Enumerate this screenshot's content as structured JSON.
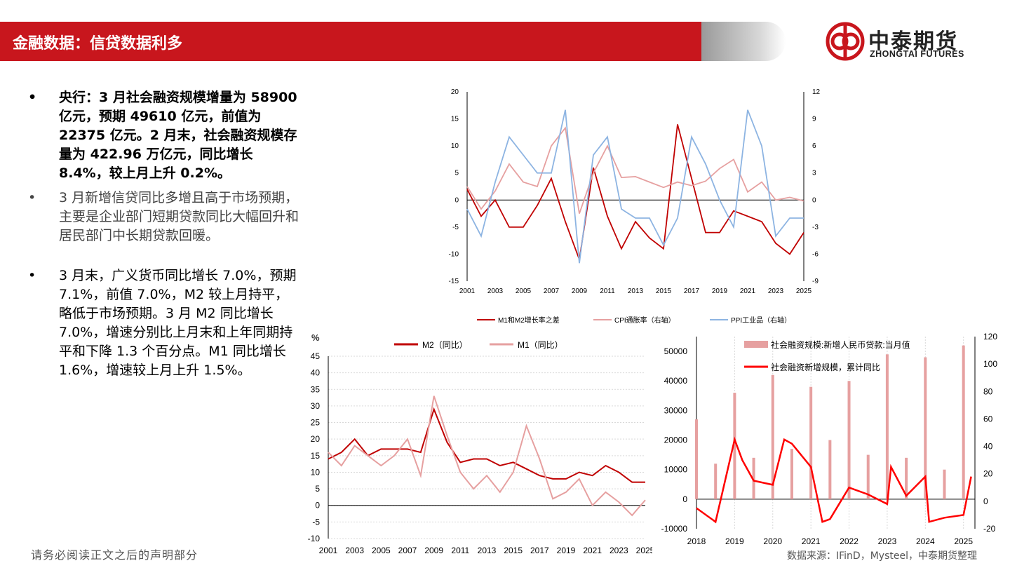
{
  "header": {
    "title": "金融数据：信贷数据利多"
  },
  "logo": {
    "cn": "中泰期货",
    "en": "ZHONGTAI FUTURES",
    "brand_color": "#c8161d"
  },
  "bullets": [
    {
      "text": "央行：3 月社会融资规模增量为 58900 亿元，预期 49610 亿元，前值为 22375 亿元。2 月末，社会融资规模存量为 422.96 万亿元，同比增长 8.4%，较上月上升 0.2%。"
    },
    {
      "text": "3 月新增信贷同比多增且高于市场预期，主要是企业部门短期贷款同比大幅回升和居民部门中长期贷款回暖。"
    },
    {
      "text": "3 月末，广义货币同比增长 7.0%，预期 7.1%，前值 7.0%，M2 较上月持平，略低于市场预期。3 月 M2 同比增长 7.0%，增速分别比上月末和上年同期持平和下降 1.3 个百分点。M1 同比增长 1.6%，增速较上月上升 1.5%。"
    }
  ],
  "footer": {
    "disclaimer": "请务必阅读正文之后的声明部分",
    "source": "数据来源：IFinD，Mysteel，中泰期货整理"
  },
  "chart_data": [
    {
      "type": "line",
      "left_ticks": [
        "20",
        "15",
        "10",
        "5",
        "0",
        "-5",
        "-10",
        "-15"
      ],
      "right_ticks": [
        "12",
        "9",
        "6",
        "3",
        "0",
        "-3",
        "-6",
        "-9"
      ],
      "x_ticks": [
        "2001",
        "2003",
        "2005",
        "2007",
        "2009",
        "2011",
        "2013",
        "2015",
        "2017",
        "2019",
        "2021",
        "2023",
        "2025"
      ],
      "ylim": [
        -15,
        20
      ],
      "ylim_right": [
        -9,
        12
      ],
      "legend_position": "bottom",
      "series": [
        {
          "name": "M1和M2增长率之差",
          "axis": "left",
          "color": "#c00000",
          "x": [
            2001,
            2002,
            2003,
            2004,
            2005,
            2006,
            2007,
            2008,
            2009,
            2010,
            2011,
            2012,
            2013,
            2014,
            2015,
            2016,
            2017,
            2018,
            2019,
            2020,
            2021,
            2022,
            2023,
            2024,
            2025
          ],
          "values": [
            2,
            -3,
            0,
            -5,
            -5,
            -1,
            4,
            -4,
            -11,
            6,
            -3,
            -9,
            -4,
            -7,
            -9,
            14,
            4,
            -6,
            -6,
            -2,
            -3,
            -4,
            -8,
            -10,
            -6
          ]
        },
        {
          "name": "CPI通胀率（右轴）",
          "axis": "right",
          "color": "#e6a0a0",
          "x": [
            2001,
            2002,
            2003,
            2004,
            2005,
            2006,
            2007,
            2008,
            2009,
            2010,
            2011,
            2012,
            2013,
            2014,
            2015,
            2016,
            2017,
            2018,
            2019,
            2020,
            2021,
            2022,
            2023,
            2024,
            2025
          ],
          "values": [
            1.5,
            -1,
            1,
            4,
            2,
            1.5,
            6,
            8,
            -1.5,
            3,
            6,
            2.5,
            2.6,
            2,
            1.4,
            2,
            1.6,
            2.1,
            3.5,
            4.5,
            0.9,
            2,
            0,
            0.3,
            -0.1
          ]
        },
        {
          "name": "PPI工业品（右轴）",
          "axis": "right",
          "color": "#8db4e2",
          "x": [
            2001,
            2002,
            2003,
            2004,
            2005,
            2006,
            2007,
            2008,
            2009,
            2010,
            2011,
            2012,
            2013,
            2014,
            2015,
            2016,
            2017,
            2018,
            2019,
            2020,
            2021,
            2022,
            2023,
            2024,
            2025
          ],
          "values": [
            -1,
            -4,
            2,
            7,
            5,
            3,
            3,
            10,
            -7,
            5,
            7,
            -1,
            -2,
            -2,
            -5,
            -2,
            7,
            4,
            0,
            -3,
            10,
            6,
            -4,
            -2,
            -2
          ]
        }
      ]
    },
    {
      "type": "line",
      "ylabel": "%",
      "y_ticks": [
        "45",
        "40",
        "35",
        "30",
        "25",
        "20",
        "15",
        "10",
        "5",
        "0",
        "-5",
        "-10"
      ],
      "x_ticks": [
        "2001",
        "2003",
        "2005",
        "2007",
        "2009",
        "2011",
        "2013",
        "2015",
        "2017",
        "2019",
        "2021",
        "2023",
        "2025"
      ],
      "ylim": [
        -10,
        45
      ],
      "legend_position": "top",
      "series": [
        {
          "name": "M2（同比）",
          "color": "#c00000",
          "x": [
            2001,
            2002,
            2003,
            2004,
            2005,
            2006,
            2007,
            2008,
            2009,
            2010,
            2011,
            2012,
            2013,
            2014,
            2015,
            2016,
            2017,
            2018,
            2019,
            2020,
            2021,
            2022,
            2023,
            2024,
            2025
          ],
          "values": [
            14,
            16,
            20,
            15,
            17,
            17,
            17,
            16,
            29,
            19,
            13,
            14,
            14,
            12,
            13,
            11,
            9,
            8,
            8,
            10,
            9,
            12,
            10,
            7,
            7
          ]
        },
        {
          "name": "M1（同比）",
          "color": "#e6a0a0",
          "x": [
            2001,
            2002,
            2003,
            2004,
            2005,
            2006,
            2007,
            2008,
            2009,
            2010,
            2011,
            2012,
            2013,
            2014,
            2015,
            2016,
            2017,
            2018,
            2019,
            2020,
            2021,
            2022,
            2023,
            2024,
            2025
          ],
          "values": [
            16,
            12,
            18,
            15,
            12,
            15,
            20,
            9,
            33,
            21,
            10,
            5,
            9,
            4,
            10,
            24,
            14,
            2,
            4,
            8,
            0,
            4,
            1,
            -3,
            1.6
          ]
        }
      ]
    },
    {
      "type": "bar",
      "left_ticks": [
        "50000",
        "40000",
        "30000",
        "20000",
        "10000",
        "0",
        "-10000"
      ],
      "right_ticks": [
        "120",
        "100",
        "80",
        "60",
        "40",
        "20",
        "0",
        "-20"
      ],
      "x_ticks": [
        "2018",
        "2019",
        "2020",
        "2021",
        "2022",
        "2023",
        "2024",
        "2025"
      ],
      "ylim": [
        -10000,
        55000
      ],
      "ylim_right": [
        -20,
        120
      ],
      "legend_position": "top",
      "series": [
        {
          "name": "社会融资规模:新增人民币贷款:当月值",
          "type": "bar",
          "axis": "left",
          "color": "#e6a0a0",
          "x": [
            2018,
            2018.5,
            2019,
            2019.5,
            2020,
            2020.5,
            2021,
            2021.5,
            2022,
            2022.5,
            2023,
            2023.5,
            2024,
            2024.5,
            2025
          ],
          "values": [
            27000,
            12000,
            36000,
            14000,
            42000,
            17000,
            38000,
            20000,
            40000,
            15000,
            49000,
            14000,
            48000,
            10000,
            52000
          ]
        },
        {
          "name": "社会融资新增规模，累计同比",
          "type": "line",
          "axis": "right",
          "color": "#ff0000",
          "x": [
            2018,
            2018.5,
            2019,
            2019.2,
            2019.5,
            2020,
            2020.3,
            2020.5,
            2021,
            2021.3,
            2021.5,
            2022,
            2022.5,
            2023,
            2023.1,
            2023.5,
            2024,
            2024.1,
            2024.5,
            2025,
            2025.2
          ],
          "values": [
            -5,
            -15,
            45,
            30,
            15,
            12,
            45,
            42,
            25,
            -15,
            -13,
            10,
            5,
            -2,
            25,
            4,
            18,
            -15,
            -12,
            -10,
            18
          ]
        }
      ]
    }
  ]
}
